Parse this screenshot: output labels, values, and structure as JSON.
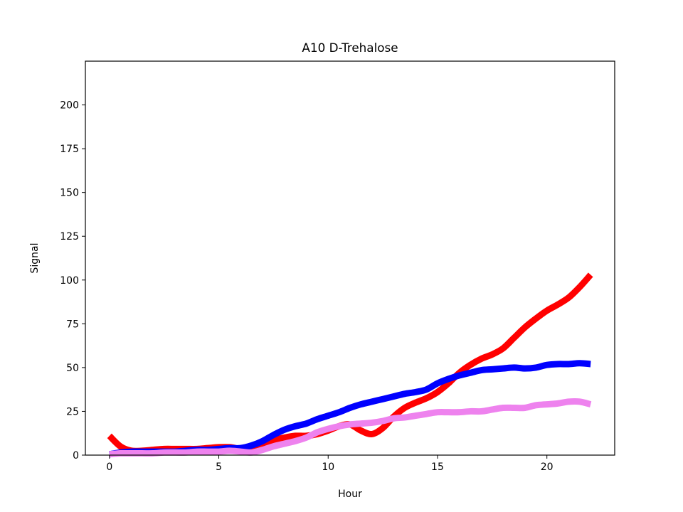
{
  "chart_data": {
    "type": "line",
    "title": "A10 D-Trehalose",
    "xlabel": "Hour",
    "ylabel": "Signal",
    "xlim": [
      -1.1,
      23.1
    ],
    "ylim": [
      0,
      225
    ],
    "xticks": [
      0,
      5,
      10,
      15,
      20
    ],
    "yticks": [
      0,
      25,
      50,
      75,
      100,
      125,
      150,
      175,
      200
    ],
    "grid": false,
    "legend": "none",
    "series": [
      {
        "color": "#ff0000",
        "x": [
          0,
          0.5,
          1,
          1.5,
          2,
          2.5,
          3,
          3.5,
          4,
          4.5,
          5,
          5.5,
          6,
          6.5,
          7,
          7.5,
          8,
          8.5,
          9,
          9.5,
          10,
          10.5,
          11,
          11.5,
          12,
          12.5,
          13,
          13.5,
          14,
          14.5,
          15,
          15.5,
          16,
          16.5,
          17,
          17.5,
          18,
          18.5,
          19,
          19.5,
          20,
          20.5,
          21,
          21.5,
          22
        ],
        "values": [
          11,
          5,
          2.5,
          2.5,
          3,
          3.5,
          3.5,
          3.5,
          3.5,
          4,
          4.5,
          4.5,
          3.5,
          3,
          6,
          8.5,
          10,
          11,
          11,
          12,
          14,
          16.5,
          17.5,
          14,
          12,
          15.5,
          22,
          27,
          30,
          32.5,
          36,
          41,
          47,
          51.5,
          55,
          57.5,
          61,
          67,
          73,
          78,
          82.5,
          86,
          90,
          96,
          103
        ]
      },
      {
        "color": "#0000ff",
        "x": [
          0,
          0.5,
          1,
          1.5,
          2,
          2.5,
          3,
          3.5,
          4,
          4.5,
          5,
          5.5,
          6,
          6.5,
          7,
          7.5,
          8,
          8.5,
          9,
          9.5,
          10,
          10.5,
          11,
          11.5,
          12,
          12.5,
          13,
          13.5,
          14,
          14.5,
          15,
          15.5,
          16,
          16.5,
          17,
          17.5,
          18,
          18.5,
          19,
          19.5,
          20,
          20.5,
          21,
          21.5,
          22
        ],
        "values": [
          0.5,
          1.5,
          2,
          2,
          2,
          2,
          2,
          2.5,
          3,
          3,
          3.5,
          4,
          4,
          5.5,
          8,
          11.5,
          14.5,
          16.5,
          18,
          20.5,
          22.5,
          24.5,
          27,
          29,
          30.5,
          32,
          33.5,
          35,
          36,
          37.5,
          41,
          43.5,
          45.5,
          47,
          48.5,
          49,
          49.5,
          50,
          49.5,
          50,
          51.5,
          52,
          52,
          52.5,
          52
        ]
      },
      {
        "color": "#ee82ee",
        "x": [
          0,
          0.5,
          1,
          1.5,
          2,
          2.5,
          3,
          3.5,
          4,
          4.5,
          5,
          5.5,
          6,
          6.5,
          7,
          7.5,
          8,
          8.5,
          9,
          9.5,
          10,
          10.5,
          11,
          11.5,
          12,
          12.5,
          13,
          13.5,
          14,
          14.5,
          15,
          15.5,
          16,
          16.5,
          17,
          17.5,
          18,
          18.5,
          19,
          19.5,
          20,
          20.5,
          21,
          21.5,
          22
        ],
        "values": [
          0.5,
          1,
          1,
          1,
          1,
          1.5,
          1.5,
          1.5,
          2,
          2,
          2,
          2.5,
          2,
          1.5,
          3,
          5,
          6.5,
          8,
          10,
          13,
          15,
          16.5,
          17.5,
          18,
          18.5,
          19.5,
          21,
          21.5,
          22.5,
          23.5,
          24.5,
          24.5,
          24.5,
          25,
          25,
          26,
          27,
          27,
          27,
          28.5,
          29,
          29.5,
          30.5,
          30.5,
          29
        ]
      }
    ]
  }
}
